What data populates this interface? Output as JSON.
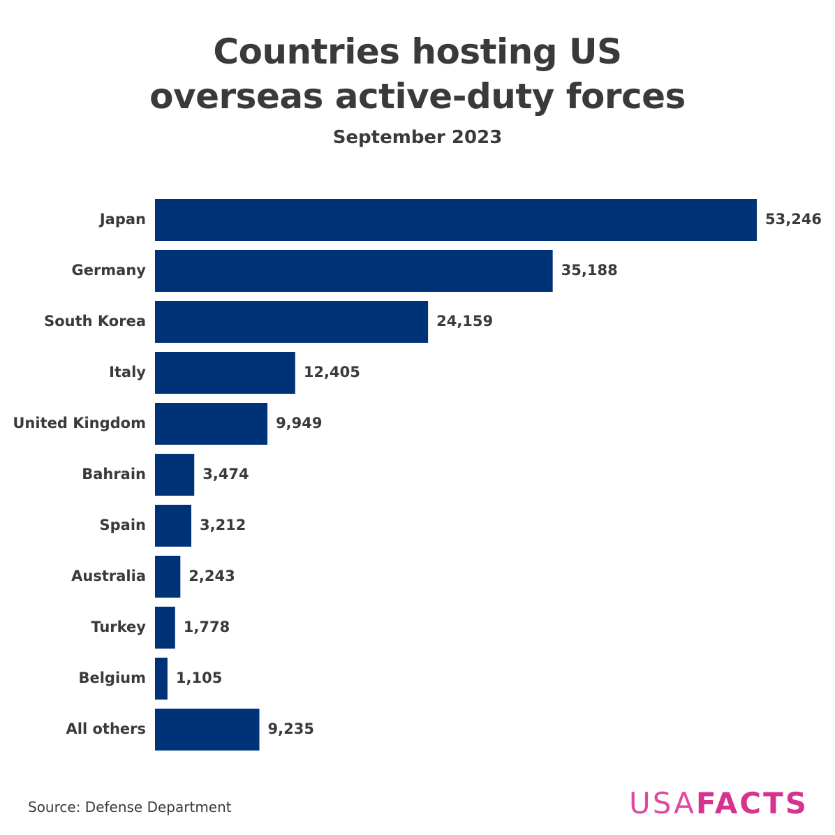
{
  "chart_data": {
    "type": "bar",
    "orientation": "horizontal",
    "title": "Countries hosting US overseas active-duty forces",
    "subtitle": "September 2023",
    "categories": [
      "Japan",
      "Germany",
      "South Korea",
      "Italy",
      "United Kingdom",
      "Bahrain",
      "Spain",
      "Australia",
      "Turkey",
      "Belgium",
      "All others"
    ],
    "values": [
      53246,
      35188,
      24159,
      12405,
      9949,
      3474,
      3212,
      2243,
      1778,
      1105,
      9235
    ],
    "value_labels": [
      "53,246",
      "35,188",
      "24,159",
      "12,405",
      "9,949",
      "3,474",
      "3,212",
      "2,243",
      "1,778",
      "1,105",
      "9,235"
    ],
    "color": "#003278",
    "source": "Source: Defense Department",
    "logo": {
      "light": "USA",
      "bold": "FACTS"
    }
  }
}
